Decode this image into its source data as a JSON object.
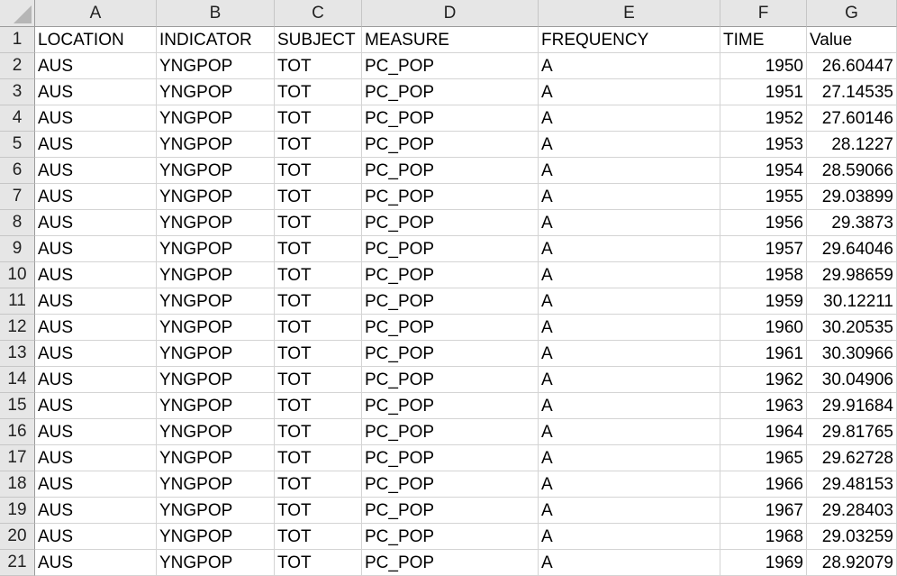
{
  "columns": [
    "A",
    "B",
    "C",
    "D",
    "E",
    "F",
    "G"
  ],
  "header_row": {
    "number": "1",
    "cells": [
      "LOCATION",
      "INDICATOR",
      "SUBJECT",
      "MEASURE",
      "FREQUENCY",
      "TIME",
      "Value"
    ]
  },
  "rows": [
    {
      "num": "2",
      "cells": [
        "AUS",
        "YNGPOP",
        "TOT",
        "PC_POP",
        "A",
        "1950",
        "26.60447"
      ]
    },
    {
      "num": "3",
      "cells": [
        "AUS",
        "YNGPOP",
        "TOT",
        "PC_POP",
        "A",
        "1951",
        "27.14535"
      ]
    },
    {
      "num": "4",
      "cells": [
        "AUS",
        "YNGPOP",
        "TOT",
        "PC_POP",
        "A",
        "1952",
        "27.60146"
      ]
    },
    {
      "num": "5",
      "cells": [
        "AUS",
        "YNGPOP",
        "TOT",
        "PC_POP",
        "A",
        "1953",
        "28.1227"
      ]
    },
    {
      "num": "6",
      "cells": [
        "AUS",
        "YNGPOP",
        "TOT",
        "PC_POP",
        "A",
        "1954",
        "28.59066"
      ]
    },
    {
      "num": "7",
      "cells": [
        "AUS",
        "YNGPOP",
        "TOT",
        "PC_POP",
        "A",
        "1955",
        "29.03899"
      ]
    },
    {
      "num": "8",
      "cells": [
        "AUS",
        "YNGPOP",
        "TOT",
        "PC_POP",
        "A",
        "1956",
        "29.3873"
      ]
    },
    {
      "num": "9",
      "cells": [
        "AUS",
        "YNGPOP",
        "TOT",
        "PC_POP",
        "A",
        "1957",
        "29.64046"
      ]
    },
    {
      "num": "10",
      "cells": [
        "AUS",
        "YNGPOP",
        "TOT",
        "PC_POP",
        "A",
        "1958",
        "29.98659"
      ]
    },
    {
      "num": "11",
      "cells": [
        "AUS",
        "YNGPOP",
        "TOT",
        "PC_POP",
        "A",
        "1959",
        "30.12211"
      ]
    },
    {
      "num": "12",
      "cells": [
        "AUS",
        "YNGPOP",
        "TOT",
        "PC_POP",
        "A",
        "1960",
        "30.20535"
      ]
    },
    {
      "num": "13",
      "cells": [
        "AUS",
        "YNGPOP",
        "TOT",
        "PC_POP",
        "A",
        "1961",
        "30.30966"
      ]
    },
    {
      "num": "14",
      "cells": [
        "AUS",
        "YNGPOP",
        "TOT",
        "PC_POP",
        "A",
        "1962",
        "30.04906"
      ]
    },
    {
      "num": "15",
      "cells": [
        "AUS",
        "YNGPOP",
        "TOT",
        "PC_POP",
        "A",
        "1963",
        "29.91684"
      ]
    },
    {
      "num": "16",
      "cells": [
        "AUS",
        "YNGPOP",
        "TOT",
        "PC_POP",
        "A",
        "1964",
        "29.81765"
      ]
    },
    {
      "num": "17",
      "cells": [
        "AUS",
        "YNGPOP",
        "TOT",
        "PC_POP",
        "A",
        "1965",
        "29.62728"
      ]
    },
    {
      "num": "18",
      "cells": [
        "AUS",
        "YNGPOP",
        "TOT",
        "PC_POP",
        "A",
        "1966",
        "29.48153"
      ]
    },
    {
      "num": "19",
      "cells": [
        "AUS",
        "YNGPOP",
        "TOT",
        "PC_POP",
        "A",
        "1967",
        "29.28403"
      ]
    },
    {
      "num": "20",
      "cells": [
        "AUS",
        "YNGPOP",
        "TOT",
        "PC_POP",
        "A",
        "1968",
        "29.03259"
      ]
    },
    {
      "num": "21",
      "cells": [
        "AUS",
        "YNGPOP",
        "TOT",
        "PC_POP",
        "A",
        "1969",
        "28.92079"
      ]
    }
  ]
}
